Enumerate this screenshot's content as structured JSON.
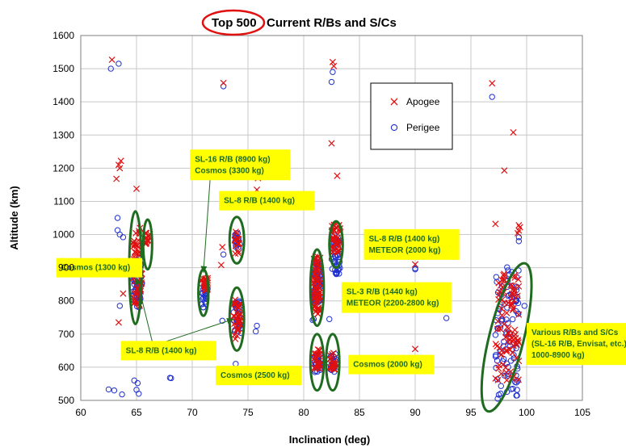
{
  "chart_data": {
    "type": "scatter",
    "title_highlight": "Top 500",
    "title_rest": "Current R/Bs and S/Cs",
    "xlabel": "Inclination (deg)",
    "ylabel": "Altitude (km)",
    "xlim": [
      60,
      105
    ],
    "ylim": [
      500,
      1600
    ],
    "xticks": [
      60,
      65,
      70,
      75,
      80,
      85,
      90,
      95,
      100,
      105
    ],
    "yticks": [
      500,
      600,
      700,
      800,
      900,
      1000,
      1100,
      1200,
      1300,
      1400,
      1500,
      1600
    ],
    "grid": true,
    "legend_position": "upper-right-inside",
    "colors": {
      "apogee": "#e01010",
      "perigee": "#1f2fd0",
      "ellipse": "#1f6b1f",
      "label_fill": "#ffff00",
      "title_circle": "#e01010"
    },
    "series": [
      {
        "name": "Apogee",
        "marker": "x",
        "points": [
          [
            62.8,
            1527
          ],
          [
            63.4,
            1210
          ],
          [
            63.6,
            1222
          ],
          [
            63.5,
            1200
          ],
          [
            63.2,
            1168
          ],
          [
            63.4,
            735
          ],
          [
            63.8,
            822
          ],
          [
            65.0,
            1138
          ],
          [
            64.9,
            800
          ],
          [
            72.8,
            1457
          ],
          [
            72.7,
            962
          ],
          [
            72.6,
            908
          ],
          [
            74.1,
            950
          ],
          [
            75.9,
            1170
          ],
          [
            75.8,
            1135
          ],
          [
            82.6,
            1520
          ],
          [
            82.7,
            1508
          ],
          [
            82.5,
            1275
          ],
          [
            83.0,
            1177
          ],
          [
            90.0,
            910
          ],
          [
            90.0,
            655
          ],
          [
            96.9,
            1456
          ],
          [
            98.8,
            1308
          ],
          [
            98.0,
            1193
          ],
          [
            97.2,
            1032
          ],
          [
            99.3,
            1028
          ],
          [
            99.4,
            1022
          ],
          [
            99.3,
            1012
          ],
          [
            99.2,
            1004
          ]
        ],
        "clusters": [
          {
            "x_range": [
              64.7,
              65.5
            ],
            "y_range": [
              785,
              1030
            ],
            "count": 55
          },
          {
            "x_range": [
              65.8,
              66.2
            ],
            "y_range": [
              970,
              1010
            ],
            "count": 14
          },
          {
            "x_range": [
              70.8,
              71.4
            ],
            "y_range": [
              830,
              870
            ],
            "count": 24
          },
          {
            "x_range": [
              73.8,
              74.3
            ],
            "y_range": [
              940,
              1010
            ],
            "count": 14
          },
          {
            "x_range": [
              73.7,
              74.4
            ],
            "y_range": [
              685,
              810
            ],
            "count": 34
          },
          {
            "x_range": [
              80.9,
              81.5
            ],
            "y_range": [
              760,
              940
            ],
            "count": 75
          },
          {
            "x_range": [
              80.9,
              81.5
            ],
            "y_range": [
              595,
              655
            ],
            "count": 24
          },
          {
            "x_range": [
              82.5,
              83.3
            ],
            "y_range": [
              945,
              1030
            ],
            "count": 40
          },
          {
            "x_range": [
              82.3,
              82.9
            ],
            "y_range": [
              590,
              645
            ],
            "count": 20
          },
          {
            "x_range": [
              97.2,
              99.3
            ],
            "y_range": [
              560,
              910
            ],
            "count": 90
          }
        ]
      },
      {
        "name": "Perigee",
        "marker": "o",
        "points": [
          [
            62.7,
            1500
          ],
          [
            63.4,
            1515
          ],
          [
            63.3,
            1050
          ],
          [
            63.3,
            1013
          ],
          [
            63.5,
            1000
          ],
          [
            63.8,
            992
          ],
          [
            63.5,
            785
          ],
          [
            62.5,
            533
          ],
          [
            63.0,
            530
          ],
          [
            63.7,
            518
          ],
          [
            64.8,
            560
          ],
          [
            65.1,
            552
          ],
          [
            65.2,
            520
          ],
          [
            65.0,
            532
          ],
          [
            68.0,
            568
          ],
          [
            68.1,
            567
          ],
          [
            72.8,
            1447
          ],
          [
            72.8,
            940
          ],
          [
            72.7,
            740
          ],
          [
            73.9,
            610
          ],
          [
            75.8,
            725
          ],
          [
            75.7,
            708
          ],
          [
            82.5,
            1460
          ],
          [
            82.6,
            1490
          ],
          [
            80.9,
            745
          ],
          [
            80.8,
            742
          ],
          [
            82.3,
            745
          ],
          [
            90.0,
            895
          ],
          [
            90.0,
            898
          ],
          [
            92.8,
            748
          ],
          [
            96.9,
            1415
          ],
          [
            99.3,
            992
          ],
          [
            99.3,
            980
          ],
          [
            99.8,
            785
          ],
          [
            97.4,
            505
          ],
          [
            97.5,
            517
          ]
        ],
        "clusters": [
          {
            "x_range": [
              64.7,
              65.5
            ],
            "y_range": [
              780,
              930
            ],
            "count": 60
          },
          {
            "x_range": [
              70.8,
              71.4
            ],
            "y_range": [
              780,
              860
            ],
            "count": 24
          },
          {
            "x_range": [
              73.8,
              74.3
            ],
            "y_range": [
              955,
              1005
            ],
            "count": 14
          },
          {
            "x_range": [
              73.7,
              74.4
            ],
            "y_range": [
              700,
              800
            ],
            "count": 34
          },
          {
            "x_range": [
              80.9,
              81.5
            ],
            "y_range": [
              790,
              920
            ],
            "count": 75
          },
          {
            "x_range": [
              80.9,
              81.5
            ],
            "y_range": [
              585,
              640
            ],
            "count": 24
          },
          {
            "x_range": [
              82.5,
              83.3
            ],
            "y_range": [
              880,
              1000
            ],
            "count": 40
          },
          {
            "x_range": [
              82.3,
              82.9
            ],
            "y_range": [
              585,
              640
            ],
            "count": 20
          },
          {
            "x_range": [
              97.2,
              99.3
            ],
            "y_range": [
              510,
              905
            ],
            "count": 90
          }
        ]
      }
    ],
    "ellipses": [
      {
        "cx": 64.9,
        "cy": 900,
        "rx": 0.55,
        "ry": 170
      },
      {
        "cx": 66.0,
        "cy": 970,
        "rx": 0.4,
        "ry": 75
      },
      {
        "cx": 71.0,
        "cy": 825,
        "rx": 0.45,
        "ry": 70
      },
      {
        "cx": 74.0,
        "cy": 983,
        "rx": 0.65,
        "ry": 70
      },
      {
        "cx": 74.0,
        "cy": 745,
        "rx": 0.65,
        "ry": 95
      },
      {
        "cx": 81.2,
        "cy": 840,
        "rx": 0.6,
        "ry": 115
      },
      {
        "cx": 81.2,
        "cy": 615,
        "rx": 0.6,
        "ry": 85
      },
      {
        "cx": 82.9,
        "cy": 970,
        "rx": 0.6,
        "ry": 70
      },
      {
        "cx": 82.6,
        "cy": 615,
        "rx": 0.6,
        "ry": 85
      },
      {
        "cx": 98.2,
        "cy": 690,
        "rx": 1.55,
        "ry": 230,
        "angle": 14
      }
    ],
    "annotations": [
      {
        "lines": [
          "SL-16 R/B (8900 kg)",
          "Cosmos (3300 kg)"
        ],
        "x": 69.8,
        "y": 1210
      },
      {
        "lines": [
          "SL-8 R/B (1400 kg)"
        ],
        "x": 72.4,
        "y": 1102
      },
      {
        "lines": [
          "Cosmos (1300 kg)"
        ],
        "x": 57.8,
        "y": 900
      },
      {
        "lines": [
          "SL-8 R/B (1400 kg)",
          "METEOR (2000 kg)"
        ],
        "x": 85.4,
        "y": 970
      },
      {
        "lines": [
          "SL-3 R/B (1440 kg)",
          "METEOR (2200-2800 kg)"
        ],
        "x": 83.4,
        "y": 810
      },
      {
        "lines": [
          "SL-8 R/B (1400 kg)"
        ],
        "x": 63.6,
        "y": 650
      },
      {
        "lines": [
          "Cosmos (2500 kg)"
        ],
        "x": 72.1,
        "y": 575
      },
      {
        "lines": [
          "Cosmos (2000 kg)"
        ],
        "x": 84.0,
        "y": 608
      },
      {
        "lines": [
          "Various  R/Bs and S/Cs",
          "(SL-16 R/B, Envisat, etc.)",
          "1000-8900 kg)"
        ],
        "x": 100.0,
        "y": 670
      }
    ],
    "arrows": [
      {
        "from": [
          71.6,
          1165
        ],
        "to": [
          71.0,
          885
        ]
      },
      {
        "from": [
          66.5,
          665
        ],
        "to": [
          65.0,
          870
        ]
      },
      {
        "from": [
          66.5,
          665
        ],
        "to": [
          73.7,
          745
        ]
      }
    ]
  }
}
